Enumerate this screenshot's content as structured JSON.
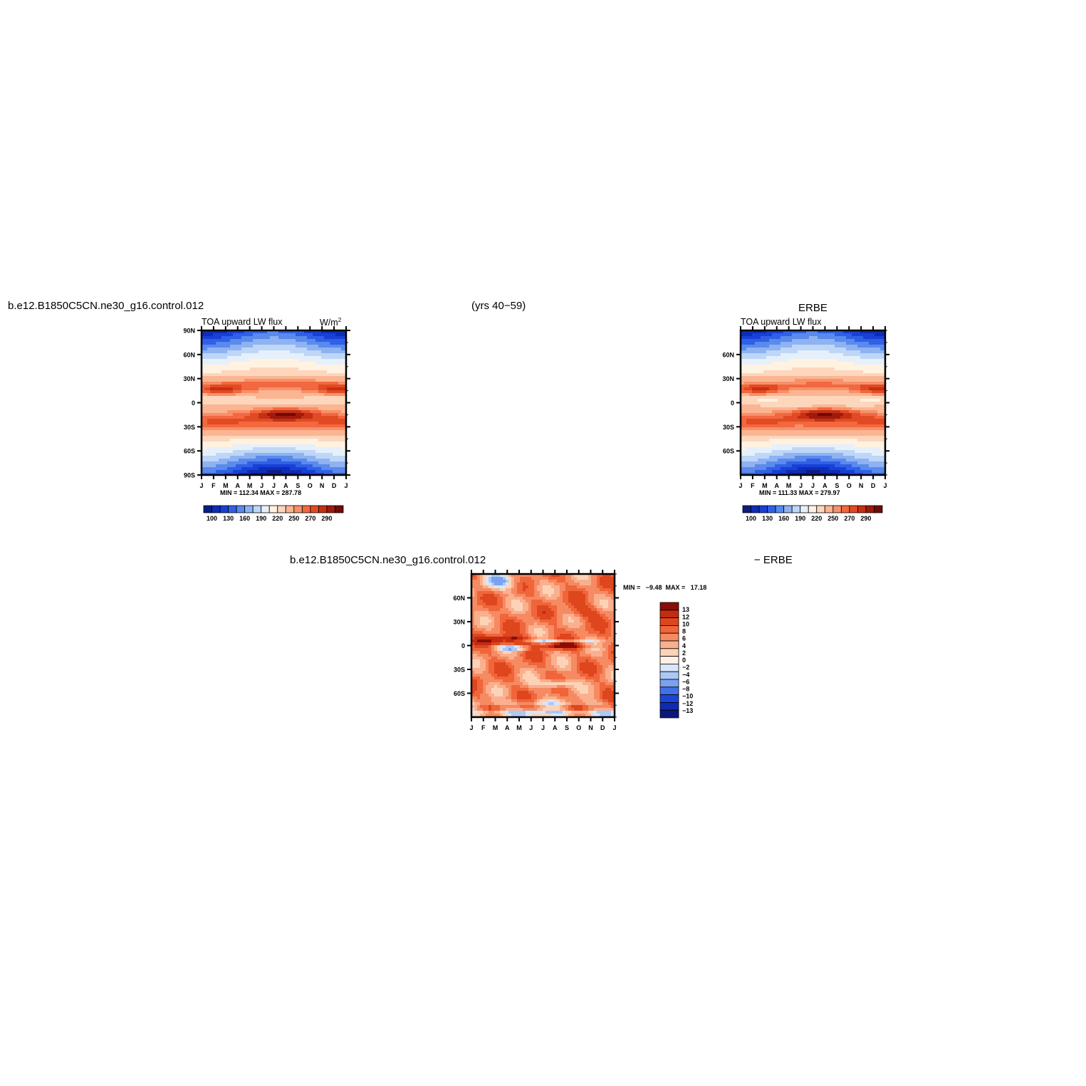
{
  "header": {
    "left_title": "b.e12.B1850C5CN.ne30_g16.control.012",
    "center_title": "(yrs 40−59)",
    "right_title": "ERBE"
  },
  "diff_header": {
    "left": "b.e12.B1850C5CN.ne30_g16.control.012",
    "right": "− ERBE"
  },
  "colors": {
    "abs_scale": [
      "#081d86",
      "#0e2cb8",
      "#1840d8",
      "#3060e6",
      "#5a8aec",
      "#8eb2f2",
      "#bed6f7",
      "#e6f0fb",
      "#fff2e0",
      "#fdd6bc",
      "#fbb592",
      "#f8906a",
      "#f26840",
      "#e24a24",
      "#c43014",
      "#9e1a0c",
      "#6e0b06"
    ],
    "diff_scale": [
      "#081a7a",
      "#0f2bb0",
      "#1d44d8",
      "#4270e8",
      "#7aa2f0",
      "#acc8f5",
      "#d8e6fa",
      "#fff0e2",
      "#fdd3b8",
      "#fab08e",
      "#f68a62",
      "#f0653a",
      "#de461e",
      "#c22c10",
      "#8a0e06"
    ]
  },
  "chart_data": [
    {
      "type": "heatmap",
      "panel": "model",
      "title": "TOA upward LW flux",
      "units": "W/m²",
      "x_tick_labels": [
        "J",
        "F",
        "M",
        "A",
        "M",
        "J",
        "J",
        "A",
        "S",
        "O",
        "N",
        "D",
        "J"
      ],
      "y_tick_labels": [
        "90N",
        "60N",
        "30N",
        "0",
        "30S",
        "60S",
        "90S"
      ],
      "y_ticks": [
        90,
        60,
        30,
        0,
        -30,
        -60,
        -90
      ],
      "ylim": [
        -90,
        90
      ],
      "stats_text": "MIN = 112.34   MAX = 287.78",
      "min": 112.34,
      "max": 287.78,
      "colorbar_labels": [
        "100",
        "130",
        "160",
        "190",
        "220",
        "250",
        "270",
        "290"
      ],
      "colorbar_levels": [
        100,
        115,
        130,
        145,
        160,
        175,
        190,
        205,
        220,
        235,
        250,
        260,
        270,
        280,
        290,
        300
      ],
      "legend_placement": "bottom"
    },
    {
      "type": "heatmap",
      "panel": "observations",
      "title": "TOA upward LW flux",
      "x_tick_labels": [
        "J",
        "F",
        "M",
        "A",
        "M",
        "J",
        "J",
        "A",
        "S",
        "O",
        "N",
        "D",
        "J"
      ],
      "y_tick_labels": [
        "60N",
        "30N",
        "0",
        "30S",
        "60S"
      ],
      "y_ticks": [
        60,
        30,
        0,
        -30,
        -60
      ],
      "ylim": [
        -90,
        90
      ],
      "stats_text": "MIN = 111.33   MAX = 279.97",
      "min": 111.33,
      "max": 279.97,
      "colorbar_labels": [
        "100",
        "130",
        "160",
        "190",
        "220",
        "250",
        "270",
        "290"
      ],
      "colorbar_levels": [
        100,
        115,
        130,
        145,
        160,
        175,
        190,
        205,
        220,
        235,
        250,
        260,
        270,
        280,
        290,
        300
      ],
      "legend_placement": "bottom"
    },
    {
      "type": "heatmap",
      "panel": "difference",
      "x_tick_labels": [
        "J",
        "F",
        "M",
        "A",
        "M",
        "J",
        "J",
        "A",
        "S",
        "O",
        "N",
        "D",
        "J"
      ],
      "y_tick_labels": [
        "60N",
        "30N",
        "0",
        "30S",
        "60S"
      ],
      "y_ticks": [
        60,
        30,
        0,
        -30,
        -60
      ],
      "ylim": [
        -90,
        90
      ],
      "stats_text": "MIN =   −9.48  MAX =   17.18",
      "min": -9.48,
      "max": 17.18,
      "colorbar_labels": [
        "13",
        "12",
        "10",
        "8",
        "6",
        "4",
        "2",
        "0",
        "−2",
        "−4",
        "−6",
        "−8",
        "−10",
        "−12",
        "−13"
      ],
      "legend_placement": "right"
    }
  ]
}
